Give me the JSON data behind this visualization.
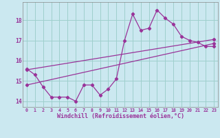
{
  "xlabel": "Windchill (Refroidissement éolien,°C)",
  "background_color": "#cbe8f0",
  "line_color": "#993399",
  "grid_color": "#9ecfcc",
  "hours": [
    0,
    1,
    2,
    3,
    4,
    5,
    6,
    7,
    8,
    9,
    10,
    11,
    12,
    13,
    14,
    15,
    16,
    17,
    18,
    19,
    20,
    21,
    22,
    23
  ],
  "line1": [
    15.6,
    15.3,
    14.7,
    14.2,
    14.2,
    14.2,
    14.0,
    14.8,
    14.8,
    14.3,
    14.6,
    15.1,
    17.0,
    18.3,
    17.5,
    17.6,
    18.5,
    18.1,
    17.8,
    17.2,
    17.0,
    16.9,
    16.7,
    16.7
  ],
  "line2_x": [
    0,
    23
  ],
  "line2_y": [
    14.8,
    16.85
  ],
  "line3_x": [
    0,
    23
  ],
  "line3_y": [
    15.55,
    17.05
  ],
  "xlim": [
    -0.5,
    23.5
  ],
  "ylim": [
    13.7,
    18.9
  ],
  "yticks": [
    14,
    15,
    16,
    17,
    18
  ],
  "xticks": [
    0,
    1,
    2,
    3,
    4,
    5,
    6,
    7,
    8,
    9,
    10,
    11,
    12,
    13,
    14,
    15,
    16,
    17,
    18,
    19,
    20,
    21,
    22,
    23
  ],
  "tick_fontsize": 4.8,
  "ylabel_fontsize": 5.5,
  "xlabel_fontsize": 6.0
}
